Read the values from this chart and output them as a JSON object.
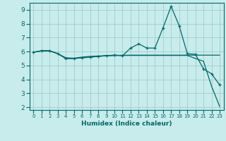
{
  "xlabel": "Humidex (Indice chaleur)",
  "bg_color": "#c8ecec",
  "grid_color": "#a0cccc",
  "line_color": "#006868",
  "xlim": [
    -0.5,
    23.5
  ],
  "ylim": [
    1.8,
    9.5
  ],
  "xticks": [
    0,
    1,
    2,
    3,
    4,
    5,
    6,
    7,
    8,
    9,
    10,
    11,
    12,
    13,
    14,
    15,
    16,
    17,
    18,
    19,
    20,
    21,
    22,
    23
  ],
  "yticks": [
    2,
    3,
    4,
    5,
    6,
    7,
    8,
    9
  ],
  "line1_x": [
    0,
    1,
    2,
    3,
    4,
    5,
    6,
    7,
    8,
    9,
    10,
    11,
    12,
    13,
    14,
    15,
    16,
    17,
    18,
    19,
    20,
    21,
    22,
    23
  ],
  "line1_y": [
    5.95,
    6.05,
    6.05,
    5.85,
    5.5,
    5.5,
    5.55,
    5.6,
    5.65,
    5.7,
    5.75,
    5.7,
    6.25,
    6.55,
    6.25,
    6.25,
    7.7,
    9.25,
    7.85,
    5.85,
    5.8,
    4.75,
    4.4,
    3.6
  ],
  "line2_x": [
    0,
    1,
    2,
    3,
    4,
    5,
    6,
    7,
    8,
    9,
    10,
    11,
    12,
    13,
    14,
    15,
    16,
    17,
    18,
    19,
    20,
    21,
    22,
    23
  ],
  "line2_y": [
    5.95,
    6.05,
    6.05,
    5.85,
    5.55,
    5.52,
    5.6,
    5.65,
    5.68,
    5.7,
    5.72,
    5.73,
    5.74,
    5.74,
    5.74,
    5.74,
    5.74,
    5.74,
    5.74,
    5.74,
    5.74,
    5.74,
    5.74,
    5.74
  ],
  "line3_x": [
    0,
    1,
    2,
    3,
    4,
    5,
    6,
    7,
    8,
    9,
    10,
    11,
    12,
    13,
    14,
    15,
    16,
    17,
    18,
    19,
    20,
    21,
    22,
    23
  ],
  "line3_y": [
    5.95,
    6.05,
    6.05,
    5.85,
    5.5,
    5.5,
    5.55,
    5.6,
    5.65,
    5.7,
    5.72,
    5.72,
    5.72,
    5.72,
    5.72,
    5.72,
    5.72,
    5.72,
    5.72,
    5.72,
    5.5,
    5.3,
    3.5,
    2.05
  ]
}
